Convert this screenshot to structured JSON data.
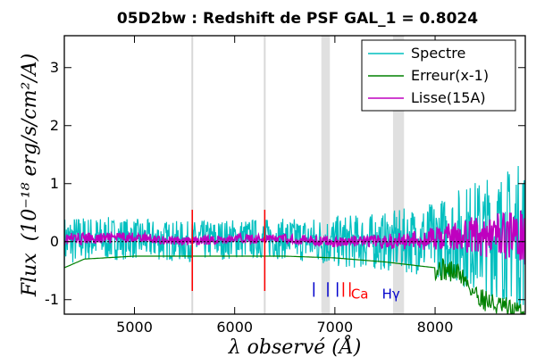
{
  "chart_data": {
    "type": "line",
    "title": "05D2bw : Redshift de PSF GAL_1 = 0.8024",
    "xlabel": "λ observé (Å)",
    "ylabel_main": "Flux",
    "ylabel_unit": "(10⁻¹⁸ erg/s/cm²/A)",
    "xlim": [
      4300,
      8900
    ],
    "ylim": [
      -1.25,
      3.55
    ],
    "xticks": [
      5000,
      6000,
      7000,
      8000
    ],
    "yticks": [
      -1,
      0,
      1,
      2,
      3
    ],
    "xtick_labels": [
      "5000",
      "6000",
      "7000",
      "8000"
    ],
    "ytick_labels": [
      "-1",
      "0",
      "1",
      "2",
      "3"
    ],
    "legend": {
      "placement": "top-right",
      "entries": [
        {
          "label": "Spectre",
          "color": "#00bfbf"
        },
        {
          "label": "Erreur(x-1)",
          "color": "#008000"
        },
        {
          "label": "Lisse(15A)",
          "color": "#bf00bf"
        }
      ]
    },
    "sky_lines": [
      5577,
      6300
    ],
    "absorption_bands": [
      [
        6865,
        6950
      ],
      [
        7580,
        7690
      ]
    ],
    "line_markers": [
      {
        "label": "Ca",
        "color": "#ff0000",
        "x": [
          7085,
          7150
        ]
      },
      {
        "label": "Hγ",
        "color": "#0000cc",
        "x": [
          6790,
          6930,
          7025
        ]
      }
    ],
    "series": [
      {
        "name": "Spectre",
        "x": [
          4300,
          4500,
          5000,
          5500,
          6000,
          6500,
          7000,
          7500,
          8000,
          8300,
          8600,
          8900
        ],
        "y": [
          0,
          0.05,
          0.05,
          0,
          0.05,
          0.05,
          0,
          0,
          0.05,
          0.1,
          0.1,
          0.1
        ],
        "noise": [
          0.45,
          0.4,
          0.35,
          0.35,
          0.35,
          0.35,
          0.45,
          0.5,
          0.65,
          0.9,
          1.1,
          1.3
        ]
      },
      {
        "name": "Erreur(x-1)",
        "x": [
          4300,
          4500,
          5000,
          5500,
          6000,
          6500,
          7000,
          7500,
          8000,
          8250,
          8400,
          8600,
          8900
        ],
        "y": [
          -0.45,
          -0.3,
          -0.25,
          -0.25,
          -0.25,
          -0.25,
          -0.28,
          -0.35,
          -0.45,
          -0.55,
          -0.9,
          -1.1,
          -1.25
        ]
      },
      {
        "name": "Lisse(15A)",
        "x": [
          4300,
          4500,
          5000,
          5500,
          6000,
          6500,
          7000,
          7500,
          8000,
          8300,
          8600,
          8900
        ],
        "y": [
          0.05,
          0.05,
          0.08,
          0,
          0.05,
          0.05,
          0,
          0,
          0.05,
          0.1,
          0.1,
          0.1
        ],
        "noise": [
          0.12,
          0.1,
          0.08,
          0.08,
          0.08,
          0.08,
          0.1,
          0.12,
          0.2,
          0.3,
          0.4,
          0.5
        ]
      }
    ],
    "zero_line": 0
  }
}
